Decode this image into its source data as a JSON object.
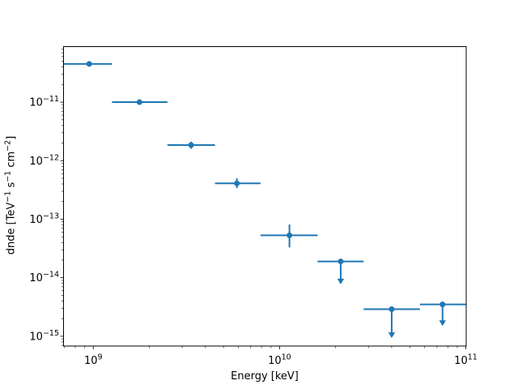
{
  "chart_data": {
    "type": "scatter",
    "subtype": "errorbar-spectrum-with-upper-limits",
    "title": "",
    "xlabel": "Energy [keV]",
    "ylabel": "dnde [TeV⁻¹ s⁻¹ cm⁻²]",
    "ylabel_parts": [
      {
        "t": "dnde [TeV"
      },
      {
        "t": "−1",
        "sup": true
      },
      {
        "t": " s"
      },
      {
        "t": "−1",
        "sup": true
      },
      {
        "t": " cm"
      },
      {
        "t": "−2",
        "sup": true
      },
      {
        "t": "]"
      }
    ],
    "xscale": "log",
    "yscale": "log",
    "xlim": [
      692000000.0,
      100500000000.0
    ],
    "ylim": [
      6.8e-16,
      8.9e-11
    ],
    "grid": false,
    "legend": "none",
    "x_major_ticks": [
      {
        "value": 1000000000.0,
        "base": "10",
        "exp": "9"
      },
      {
        "value": 10000000000.0,
        "base": "10",
        "exp": "10"
      },
      {
        "value": 100000000000.0,
        "base": "10",
        "exp": "11"
      }
    ],
    "y_major_ticks": [
      {
        "value": 1e-11,
        "base": "10",
        "exp": "−11"
      },
      {
        "value": 1e-12,
        "base": "10",
        "exp": "−12"
      },
      {
        "value": 1e-13,
        "base": "10",
        "exp": "−13"
      },
      {
        "value": 1e-14,
        "base": "10",
        "exp": "−14"
      },
      {
        "value": 1e-15,
        "base": "10",
        "exp": "−15"
      }
    ],
    "series_color": "#1f77b4",
    "points": [
      {
        "x": 950000000.0,
        "x_lo": 692000000.0,
        "x_hi": 1260000000.0,
        "y": 4.5e-11,
        "upper_limit": false
      },
      {
        "x": 1770000000.0,
        "x_lo": 1260000000.0,
        "x_hi": 2500000000.0,
        "y": 1e-11,
        "upper_limit": false
      },
      {
        "x": 3350000000.0,
        "x_lo": 2500000000.0,
        "x_hi": 4500000000.0,
        "y": 1.85e-12,
        "y_lo": 1.6e-12,
        "y_hi": 2.1e-12,
        "upper_limit": false
      },
      {
        "x": 5900000000.0,
        "x_lo": 4500000000.0,
        "x_hi": 7900000000.0,
        "y": 4.1e-13,
        "y_lo": 3.4e-13,
        "y_hi": 5e-13,
        "upper_limit": false
      },
      {
        "x": 11300000000.0,
        "x_lo": 7900000000.0,
        "x_hi": 16000000000.0,
        "y": 5.3e-14,
        "y_lo": 3.3e-14,
        "y_hi": 8.1e-14,
        "upper_limit": false
      },
      {
        "x": 21300000000.0,
        "x_lo": 16000000000.0,
        "x_hi": 28300000000.0,
        "y": 1.9e-14,
        "upper_limit": true,
        "arrow_to": 7.7e-15
      },
      {
        "x": 40000000000.0,
        "x_lo": 28300000000.0,
        "x_hi": 56700000000.0,
        "y": 2.9e-15,
        "upper_limit": true,
        "arrow_to": 9.3e-16
      },
      {
        "x": 75000000000.0,
        "x_lo": 56700000000.0,
        "x_hi": 100000000000.0,
        "y": 3.5e-15,
        "upper_limit": true,
        "arrow_to": 1.5e-15
      }
    ]
  }
}
